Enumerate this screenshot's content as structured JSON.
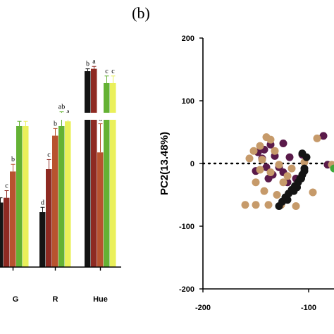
{
  "panel_label": "(b)",
  "colors": {
    "black": "#141414",
    "darkred": "#8e2a22",
    "orange": "#b8532f",
    "green": "#64b234",
    "yellow": "#eaf05a",
    "purple": "#5a1a4a",
    "tan": "#c69a6a",
    "scatter_green": "#3da83a",
    "scatter_yellow": "#eaf05a"
  },
  "chart_data": [
    {
      "type": "bar",
      "title": "",
      "xlabel": "",
      "ylabel": "",
      "categories": [
        "G",
        "R",
        "Hue"
      ],
      "series": [
        {
          "color_key": "black",
          "values": [
            0.27,
            0.23,
            0.82
          ],
          "err": [
            0.02,
            0.02,
            0.01
          ],
          "letters": [
            "",
            "d",
            "b"
          ]
        },
        {
          "color_key": "darkred",
          "values": [
            0.29,
            0.41,
            0.83
          ],
          "err": [
            0.03,
            0.04,
            0.01
          ],
          "letters": [
            "c",
            "c",
            "a"
          ]
        },
        {
          "color_key": "orange",
          "values": [
            0.4,
            0.55,
            0.48
          ],
          "err": [
            0.03,
            0.03,
            0.12
          ],
          "letters": [
            "b",
            "b",
            "d"
          ]
        },
        {
          "color_key": "green",
          "values": [
            0.59,
            0.59,
            0.77
          ],
          "err": [
            0.02,
            0.06,
            0.03
          ],
          "letters": [
            "a",
            "ab",
            "c"
          ]
        },
        {
          "color_key": "yellow",
          "values": [
            0.59,
            0.61,
            0.77
          ],
          "err": [
            0.02,
            0.02,
            0.03
          ],
          "letters": [
            "a",
            "a",
            "c"
          ]
        }
      ],
      "axis_break": true
    },
    {
      "type": "scatter",
      "title": "",
      "xlabel": "",
      "ylabel": "PC2(13.48%)",
      "xlim": [
        -200,
        -40
      ],
      "ylim": [
        -200,
        200
      ],
      "xticks": [
        -200,
        -100
      ],
      "yticks": [
        -200,
        -100,
        0,
        100,
        200
      ],
      "zero_line": "dotted",
      "series": [
        {
          "color_key": "purple",
          "points": [
            [
              -148,
              18
            ],
            [
              -144,
              8
            ],
            [
              -140,
              -6
            ],
            [
              -150,
              -12
            ],
            [
              -134,
              -18
            ],
            [
              -138,
              -24
            ],
            [
              -128,
              -6
            ],
            [
              -124,
              -14
            ],
            [
              -120,
              -30
            ],
            [
              -142,
              22
            ],
            [
              -132,
              12
            ],
            [
              -112,
              -24
            ],
            [
              -118,
              10
            ],
            [
              -106,
              14
            ],
            [
              -86,
              44
            ],
            [
              -82,
              -2
            ],
            [
              -66,
              16
            ],
            [
              -56,
              -14
            ],
            [
              -124,
              32
            ],
            [
              -136,
              30
            ]
          ]
        },
        {
          "color_key": "tan",
          "points": [
            [
              -152,
              20
            ],
            [
              -146,
              28
            ],
            [
              -140,
              42
            ],
            [
              -136,
              38
            ],
            [
              -132,
              20
            ],
            [
              -144,
              6
            ],
            [
              -150,
              -30
            ],
            [
              -142,
              -44
            ],
            [
              -130,
              -50
            ],
            [
              -160,
              -66
            ],
            [
              -150,
              -66
            ],
            [
              -138,
              -66
            ],
            [
              -126,
              -66
            ],
            [
              -112,
              -68
            ],
            [
              -156,
              8
            ],
            [
              -128,
              -2
            ],
            [
              -136,
              -14
            ],
            [
              -120,
              -20
            ],
            [
              -104,
              2
            ],
            [
              -92,
              40
            ],
            [
              -74,
              40
            ],
            [
              -68,
              -26
            ],
            [
              -96,
              -46
            ],
            [
              -78,
              -2
            ],
            [
              -58,
              10
            ],
            [
              -146,
              -10
            ],
            [
              -124,
              -30
            ],
            [
              -116,
              -8
            ]
          ]
        },
        {
          "color_key": "black",
          "points": [
            [
              -128,
              -68
            ],
            [
              -125,
              -61
            ],
            [
              -122,
              -54
            ],
            [
              -119,
              -48
            ],
            [
              -116,
              -42
            ],
            [
              -113,
              -36
            ],
            [
              -110,
              -30
            ],
            [
              -108,
              -24
            ],
            [
              -106,
              -18
            ],
            [
              -104,
              -12
            ],
            [
              -111,
              -38
            ],
            [
              -120,
              -58
            ],
            [
              -114,
              -44
            ],
            [
              -107,
              -24
            ],
            [
              -104,
              -8
            ],
            [
              -106,
              16
            ],
            [
              -102,
              10
            ]
          ]
        },
        {
          "color_key": "scatter_green",
          "points": [
            [
              -52,
              134
            ],
            [
              -50,
              108
            ],
            [
              -44,
              104
            ],
            [
              -40,
              96
            ],
            [
              -56,
              86
            ],
            [
              -46,
              88
            ],
            [
              -42,
              78
            ],
            [
              -76,
              -8
            ]
          ]
        },
        {
          "color_key": "scatter_yellow",
          "points": [
            [
              -48,
              96
            ],
            [
              -44,
              92
            ]
          ]
        }
      ]
    }
  ]
}
